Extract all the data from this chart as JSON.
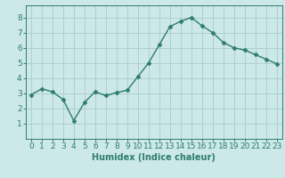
{
  "x": [
    0,
    1,
    2,
    3,
    4,
    5,
    6,
    7,
    8,
    9,
    10,
    11,
    12,
    13,
    14,
    15,
    16,
    17,
    18,
    19,
    20,
    21,
    22,
    23
  ],
  "y": [
    2.9,
    3.3,
    3.1,
    2.6,
    1.2,
    2.4,
    3.1,
    2.85,
    3.05,
    3.2,
    4.1,
    5.0,
    6.2,
    7.4,
    7.75,
    8.0,
    7.45,
    7.0,
    6.35,
    6.0,
    5.85,
    5.55,
    5.25,
    4.95
  ],
  "line_color": "#2e7d6e",
  "marker": "D",
  "marker_size": 2.5,
  "bg_color": "#cce8e8",
  "grid_color": "#aacccc",
  "xlabel": "Humidex (Indice chaleur)",
  "ylim": [
    0,
    8.8
  ],
  "xlim": [
    -0.5,
    23.5
  ],
  "yticks": [
    1,
    2,
    3,
    4,
    5,
    6,
    7,
    8
  ],
  "xticks": [
    0,
    1,
    2,
    3,
    4,
    5,
    6,
    7,
    8,
    9,
    10,
    11,
    12,
    13,
    14,
    15,
    16,
    17,
    18,
    19,
    20,
    21,
    22,
    23
  ],
  "xlabel_fontsize": 7,
  "tick_fontsize": 6.5,
  "line_width": 1.0
}
